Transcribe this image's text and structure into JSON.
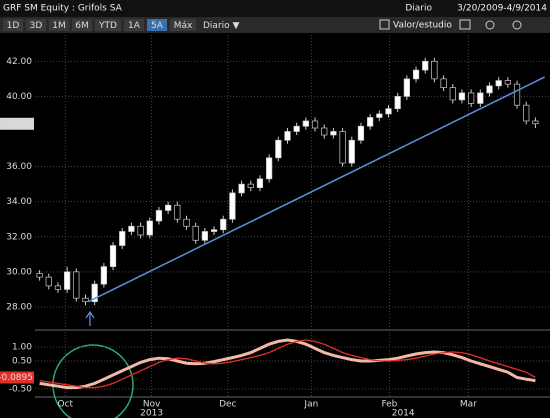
{
  "toolbar": {
    "security": "GRF SM Equity : Grifols SA",
    "frequency": "Diario",
    "range": "3/20/2009-4/9/2014",
    "buttons": [
      "1D",
      "3D",
      "1M",
      "6M",
      "YTD",
      "1A",
      "5A",
      "Máx"
    ],
    "active": "5A",
    "period": "Diario ▼",
    "study": "Valor/estudio"
  },
  "chart_data": [
    {
      "type": "candlestick",
      "color_up": "#ffffff",
      "color_down": "#000000",
      "open": [
        29.9,
        29.7,
        29.2,
        29.0,
        30.0,
        28.5,
        28.3,
        29.3,
        30.3,
        31.5,
        32.3,
        32.6,
        32.1,
        32.9,
        33.5,
        33.8,
        33.0,
        32.6,
        31.8,
        32.3,
        32.4,
        33.0,
        34.5,
        35.0,
        34.8,
        35.3,
        36.5,
        37.5,
        38.0,
        38.3,
        38.6,
        38.2,
        37.8,
        38.0,
        36.2,
        37.5,
        38.3,
        38.8,
        39.0,
        39.3,
        40.0,
        41.0,
        41.5,
        42.0,
        41.0,
        40.5,
        39.8,
        40.2,
        39.6,
        40.2,
        40.6,
        40.9,
        40.7,
        39.5,
        38.6
      ],
      "high": [
        30.1,
        29.9,
        29.4,
        30.3,
        30.2,
        28.7,
        29.5,
        30.5,
        31.7,
        32.5,
        32.8,
        32.8,
        33.1,
        33.7,
        34.0,
        34.0,
        33.2,
        32.8,
        32.5,
        32.6,
        33.2,
        34.7,
        35.2,
        35.2,
        35.5,
        36.7,
        37.7,
        38.2,
        38.5,
        38.8,
        38.8,
        38.4,
        38.2,
        38.2,
        37.7,
        38.5,
        39.0,
        39.2,
        39.5,
        40.2,
        41.2,
        41.7,
        42.2,
        42.2,
        41.2,
        40.7,
        40.4,
        40.4,
        40.4,
        40.8,
        41.1,
        41.1,
        40.9,
        39.7,
        38.8
      ],
      "low": [
        29.5,
        29.0,
        28.8,
        28.8,
        28.3,
        28.1,
        28.1,
        29.1,
        30.1,
        31.3,
        32.1,
        31.9,
        31.9,
        32.7,
        33.3,
        32.8,
        32.4,
        31.6,
        31.6,
        32.1,
        32.2,
        32.8,
        34.3,
        34.6,
        34.6,
        35.1,
        36.3,
        37.3,
        37.8,
        38.1,
        38.0,
        37.6,
        37.6,
        36.0,
        36.0,
        37.3,
        38.1,
        38.6,
        38.8,
        39.1,
        39.8,
        40.8,
        41.3,
        40.8,
        40.3,
        39.6,
        39.6,
        39.4,
        39.4,
        40.0,
        40.4,
        40.5,
        39.3,
        38.4,
        38.2
      ],
      "close": [
        29.7,
        29.2,
        29.0,
        30.0,
        28.5,
        28.3,
        29.3,
        30.3,
        31.5,
        32.3,
        32.6,
        32.1,
        32.9,
        33.5,
        33.8,
        33.0,
        32.6,
        31.8,
        32.3,
        32.4,
        33.0,
        34.5,
        35.0,
        34.8,
        35.3,
        36.5,
        37.5,
        38.0,
        38.3,
        38.6,
        38.2,
        37.8,
        38.0,
        36.2,
        37.5,
        38.3,
        38.8,
        39.0,
        39.3,
        40.0,
        41.0,
        41.5,
        42.0,
        41.0,
        40.5,
        39.8,
        40.2,
        39.6,
        40.2,
        40.6,
        40.9,
        40.7,
        39.5,
        38.6,
        38.44
      ],
      "ylim": [
        26.8,
        43.5
      ],
      "yticks": [
        {
          "value": 28,
          "label": "28.00"
        },
        {
          "value": 30,
          "label": "30.00"
        },
        {
          "value": 32,
          "label": "32.00"
        },
        {
          "value": 34,
          "label": "34.00"
        },
        {
          "value": 36,
          "label": "36.00"
        },
        {
          "value": 40,
          "label": "40.00"
        },
        {
          "value": 42,
          "label": "42.00"
        }
      ],
      "grid": true,
      "trendline": [
        [
          5.3,
          28.3
        ],
        [
          55,
          41.1
        ]
      ],
      "trendline_color": "#5b8fd6"
    },
    {
      "type": "line",
      "ylim": [
        -0.75,
        1.5
      ],
      "yticks": [
        {
          "value": 1,
          "label": "1.00"
        },
        {
          "value": 0.5,
          "label": "0.50"
        },
        {
          "value": -0.5,
          "label": "-0.50"
        }
      ],
      "series": [
        {
          "color": "#e0302a",
          "values": [
            -0.2,
            -0.25,
            -0.3,
            -0.35,
            -0.4,
            -0.45,
            -0.45,
            -0.4,
            -0.3,
            -0.15,
            0.0,
            0.15,
            0.3,
            0.45,
            0.55,
            0.6,
            0.58,
            0.5,
            0.42,
            0.4,
            0.42,
            0.48,
            0.55,
            0.62,
            0.7,
            0.8,
            0.95,
            1.1,
            1.2,
            1.25,
            1.2,
            1.1,
            0.95,
            0.8,
            0.7,
            0.62,
            0.55,
            0.5,
            0.5,
            0.52,
            0.55,
            0.6,
            0.68,
            0.75,
            0.8,
            0.82,
            0.8,
            0.72,
            0.62,
            0.5,
            0.4,
            0.3,
            0.2,
            0.1,
            -0.0895
          ]
        },
        {
          "color": "#f2b8a8",
          "values": [
            -0.3,
            -0.35,
            -0.4,
            -0.45,
            -0.45,
            -0.4,
            -0.3,
            -0.15,
            0.0,
            0.15,
            0.3,
            0.45,
            0.55,
            0.6,
            0.58,
            0.5,
            0.42,
            0.4,
            0.42,
            0.48,
            0.55,
            0.62,
            0.7,
            0.8,
            0.95,
            1.1,
            1.2,
            1.25,
            1.2,
            1.1,
            0.95,
            0.8,
            0.7,
            0.62,
            0.55,
            0.5,
            0.5,
            0.52,
            0.55,
            0.6,
            0.68,
            0.75,
            0.8,
            0.82,
            0.8,
            0.72,
            0.62,
            0.5,
            0.4,
            0.3,
            0.2,
            0.1,
            -0.0895,
            -0.15,
            -0.2
          ]
        }
      ],
      "xticks": [
        {
          "value": 2.8,
          "label": "Oct"
        },
        {
          "value": 12.2,
          "label": "Nov"
        },
        {
          "value": 20.5,
          "label": "Dec"
        },
        {
          "value": 29.6,
          "label": "Jan"
        },
        {
          "value": 38.1,
          "label": "Feb"
        },
        {
          "value": 46.7,
          "label": "Mar"
        }
      ],
      "year_ticks": [
        {
          "value": 12.2,
          "label": "2013"
        },
        {
          "value": 39.6,
          "label": "2014"
        }
      ]
    }
  ]
}
